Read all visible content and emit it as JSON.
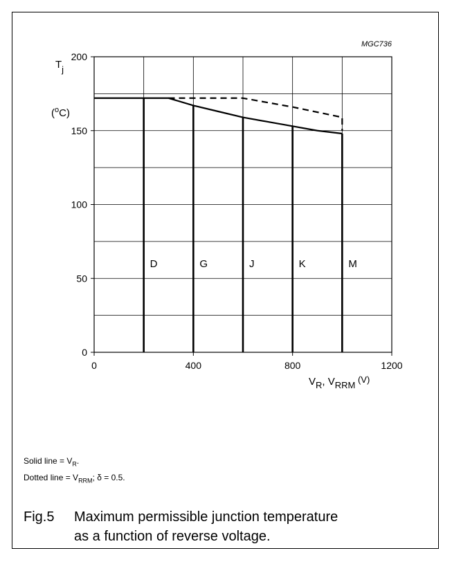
{
  "figure_code": "MGC736",
  "notes": {
    "solid_prefix": "Solid line = V",
    "solid_sub": "R",
    "solid_suffix": ".",
    "dotted_prefix": "Dotted line = V",
    "dotted_sub": "RRM",
    "dotted_suffix": "; δ = 0.5."
  },
  "caption": {
    "number": "Fig.5",
    "line1": "Maximum permissible junction temperature",
    "line2": "as a function of reverse voltage."
  },
  "chart_data": {
    "type": "line",
    "ylabel": {
      "main": "T",
      "sub": "j",
      "unit_open": "(",
      "unit_sup": "o",
      "unit_rest": "C)"
    },
    "xlabel": {
      "v1": "V",
      "s1": "R",
      "sep": ", V",
      "s2": "RRM",
      "unit": " (V)"
    },
    "xlim": [
      0,
      1200
    ],
    "ylim": [
      0,
      200
    ],
    "x_ticks": [
      0,
      400,
      800,
      1200
    ],
    "y_ticks": [
      0,
      50,
      100,
      150,
      200
    ],
    "x_grid_step": 200,
    "y_grid_step": 25,
    "grid": true,
    "series": [
      {
        "name": "Solid line = VR",
        "style": "solid",
        "x": [
          0,
          300,
          400,
          500,
          600,
          700,
          800,
          900,
          1000
        ],
        "y": [
          172,
          172,
          167,
          163,
          159,
          156,
          153,
          150,
          148
        ]
      },
      {
        "name": "Dotted line = VRRM",
        "style": "dashed",
        "x": [
          300,
          400,
          500,
          600,
          800,
          1000,
          1000
        ],
        "y": [
          172,
          172,
          172,
          172,
          166,
          159,
          150
        ]
      }
    ],
    "classes": [
      {
        "label": "D",
        "x": 200
      },
      {
        "label": "G",
        "x": 400
      },
      {
        "label": "J",
        "x": 600
      },
      {
        "label": "K",
        "x": 800
      },
      {
        "label": "M",
        "x": 1000
      }
    ],
    "class_label_y": 60
  }
}
